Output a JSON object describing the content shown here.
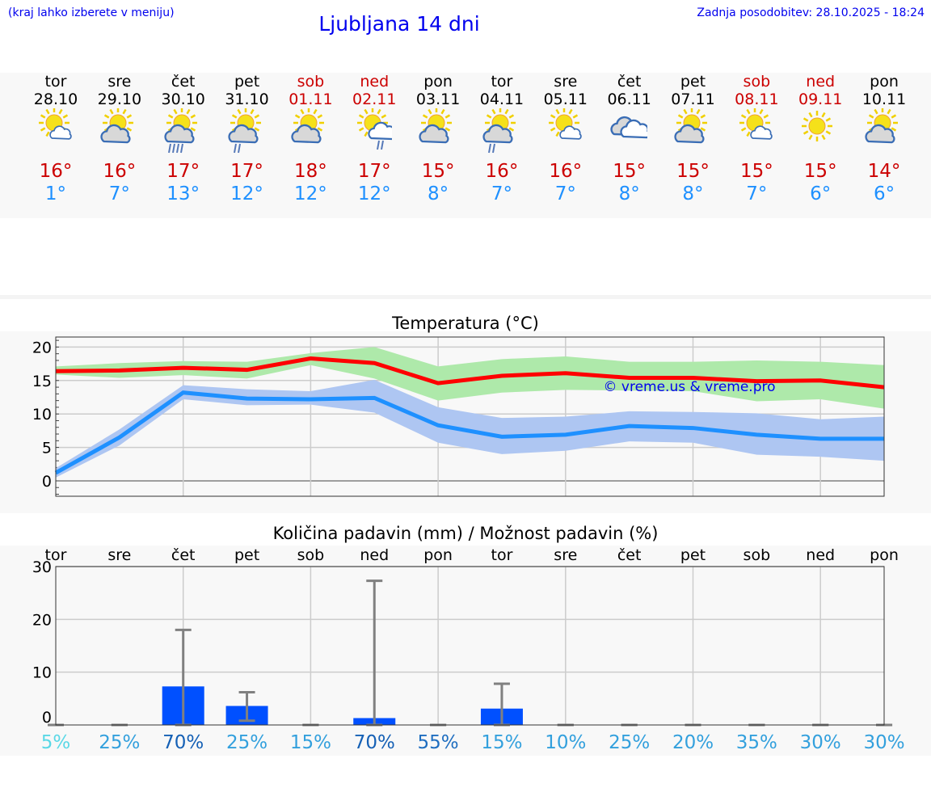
{
  "header": {
    "menu_hint": "(kraj lahko izberete v meniju)",
    "title": "Ljubljana 14 dni",
    "updated": "Zadnja posodobitev: 28.10.2025 - 18:24"
  },
  "days": [
    {
      "name": "tor",
      "date": "28.10",
      "weekend": false,
      "icon": "sun-small-cloud-icon",
      "hi": "16°",
      "lo": "1°"
    },
    {
      "name": "sre",
      "date": "29.10",
      "weekend": false,
      "icon": "sun-gray-cloud-icon",
      "hi": "16°",
      "lo": "7°"
    },
    {
      "name": "čet",
      "date": "30.10",
      "weekend": false,
      "icon": "sun-cloud-heavy-rain-icon",
      "hi": "17°",
      "lo": "13°"
    },
    {
      "name": "pet",
      "date": "31.10",
      "weekend": false,
      "icon": "sun-cloud-light-rain-icon",
      "hi": "17°",
      "lo": "12°"
    },
    {
      "name": "sob",
      "date": "01.11",
      "weekend": true,
      "icon": "sun-gray-cloud-icon",
      "hi": "18°",
      "lo": "12°"
    },
    {
      "name": "ned",
      "date": "02.11",
      "weekend": true,
      "icon": "sun-white-cloud-rain-icon",
      "hi": "17°",
      "lo": "12°"
    },
    {
      "name": "pon",
      "date": "03.11",
      "weekend": false,
      "icon": "sun-gray-cloud-icon",
      "hi": "15°",
      "lo": "8°"
    },
    {
      "name": "tor",
      "date": "04.11",
      "weekend": false,
      "icon": "sun-cloud-light-rain-icon",
      "hi": "16°",
      "lo": "7°"
    },
    {
      "name": "sre",
      "date": "05.11",
      "weekend": false,
      "icon": "sun-small-cloud-icon",
      "hi": "16°",
      "lo": "7°"
    },
    {
      "name": "čet",
      "date": "06.11",
      "weekend": false,
      "icon": "cloudy-icon",
      "hi": "15°",
      "lo": "8°"
    },
    {
      "name": "pet",
      "date": "07.11",
      "weekend": false,
      "icon": "sun-gray-cloud-icon",
      "hi": "15°",
      "lo": "8°"
    },
    {
      "name": "sob",
      "date": "08.11",
      "weekend": true,
      "icon": "sun-small-cloud-icon",
      "hi": "15°",
      "lo": "7°"
    },
    {
      "name": "ned",
      "date": "09.11",
      "weekend": true,
      "icon": "sun-icon",
      "hi": "15°",
      "lo": "6°"
    },
    {
      "name": "pon",
      "date": "10.11",
      "weekend": false,
      "icon": "sun-gray-cloud-icon",
      "hi": "14°",
      "lo": "6°"
    }
  ],
  "colors": {
    "max": "#ff0000",
    "min": "#1e90ff",
    "max_band": "#aee9aa",
    "min_band": "#aec6f2",
    "bar": "#0050ff",
    "err": "#808080"
  },
  "chart_data": [
    {
      "type": "line",
      "title": "Temperatura (°C)",
      "watermark": "© vreme.us & vreme.pro",
      "ylim": [
        -2.3,
        21.5
      ],
      "yticks": [
        0,
        5,
        10,
        15,
        20
      ],
      "x": [
        "28.10",
        "29.10",
        "30.10",
        "31.10",
        "01.11",
        "02.11",
        "03.11",
        "04.11",
        "05.11",
        "06.11",
        "07.11",
        "08.11",
        "09.11",
        "10.11"
      ],
      "series": [
        {
          "name": "max",
          "values": [
            16.4,
            16.5,
            16.9,
            16.6,
            18.3,
            17.6,
            14.6,
            15.7,
            16.1,
            15.4,
            15.4,
            14.9,
            15.0,
            14.0
          ],
          "band_low": [
            15.9,
            15.4,
            15.8,
            15.3,
            17.3,
            15.3,
            12.0,
            13.2,
            13.6,
            13.5,
            13.4,
            11.9,
            12.2,
            10.8
          ],
          "band_high": [
            17.1,
            17.6,
            17.9,
            17.8,
            19.1,
            20.0,
            17.1,
            18.2,
            18.6,
            17.8,
            17.8,
            18.0,
            17.8,
            17.3
          ]
        },
        {
          "name": "min",
          "values": [
            1.2,
            6.5,
            13.2,
            12.3,
            12.2,
            12.4,
            8.3,
            6.6,
            6.9,
            8.2,
            7.9,
            6.9,
            6.3,
            6.3
          ],
          "band_low": [
            0.5,
            5.3,
            12.2,
            11.3,
            11.4,
            10.2,
            5.7,
            4.0,
            4.5,
            5.9,
            5.7,
            3.9,
            3.6,
            3.0
          ],
          "band_high": [
            1.9,
            7.7,
            14.3,
            13.7,
            13.4,
            15.1,
            11.0,
            9.4,
            9.6,
            10.4,
            10.3,
            10.1,
            9.2,
            9.6
          ]
        }
      ]
    },
    {
      "type": "bar",
      "title": "Količina padavin (mm) / Možnost padavin (%)",
      "ylim": [
        0,
        30
      ],
      "yticks": [
        0,
        10,
        20,
        30
      ],
      "categories": [
        "tor",
        "sre",
        "čet",
        "pet",
        "sob",
        "ned",
        "pon",
        "tor",
        "sre",
        "čet",
        "pet",
        "sob",
        "ned",
        "pon"
      ],
      "values": [
        0,
        0,
        7.3,
        3.6,
        0,
        1.3,
        0,
        3.1,
        0,
        0,
        0,
        0,
        0,
        0
      ],
      "err_low": [
        0,
        0,
        0,
        0.8,
        0,
        0,
        0,
        0,
        0,
        0,
        0,
        0,
        0,
        0
      ],
      "err_high": [
        0,
        0,
        18.0,
        6.2,
        0,
        27.3,
        0,
        7.8,
        0,
        0,
        0,
        0,
        0,
        0
      ],
      "probability": [
        "5%",
        "25%",
        "70%",
        "25%",
        "15%",
        "70%",
        "55%",
        "15%",
        "10%",
        "25%",
        "20%",
        "35%",
        "30%",
        "30%"
      ]
    }
  ]
}
